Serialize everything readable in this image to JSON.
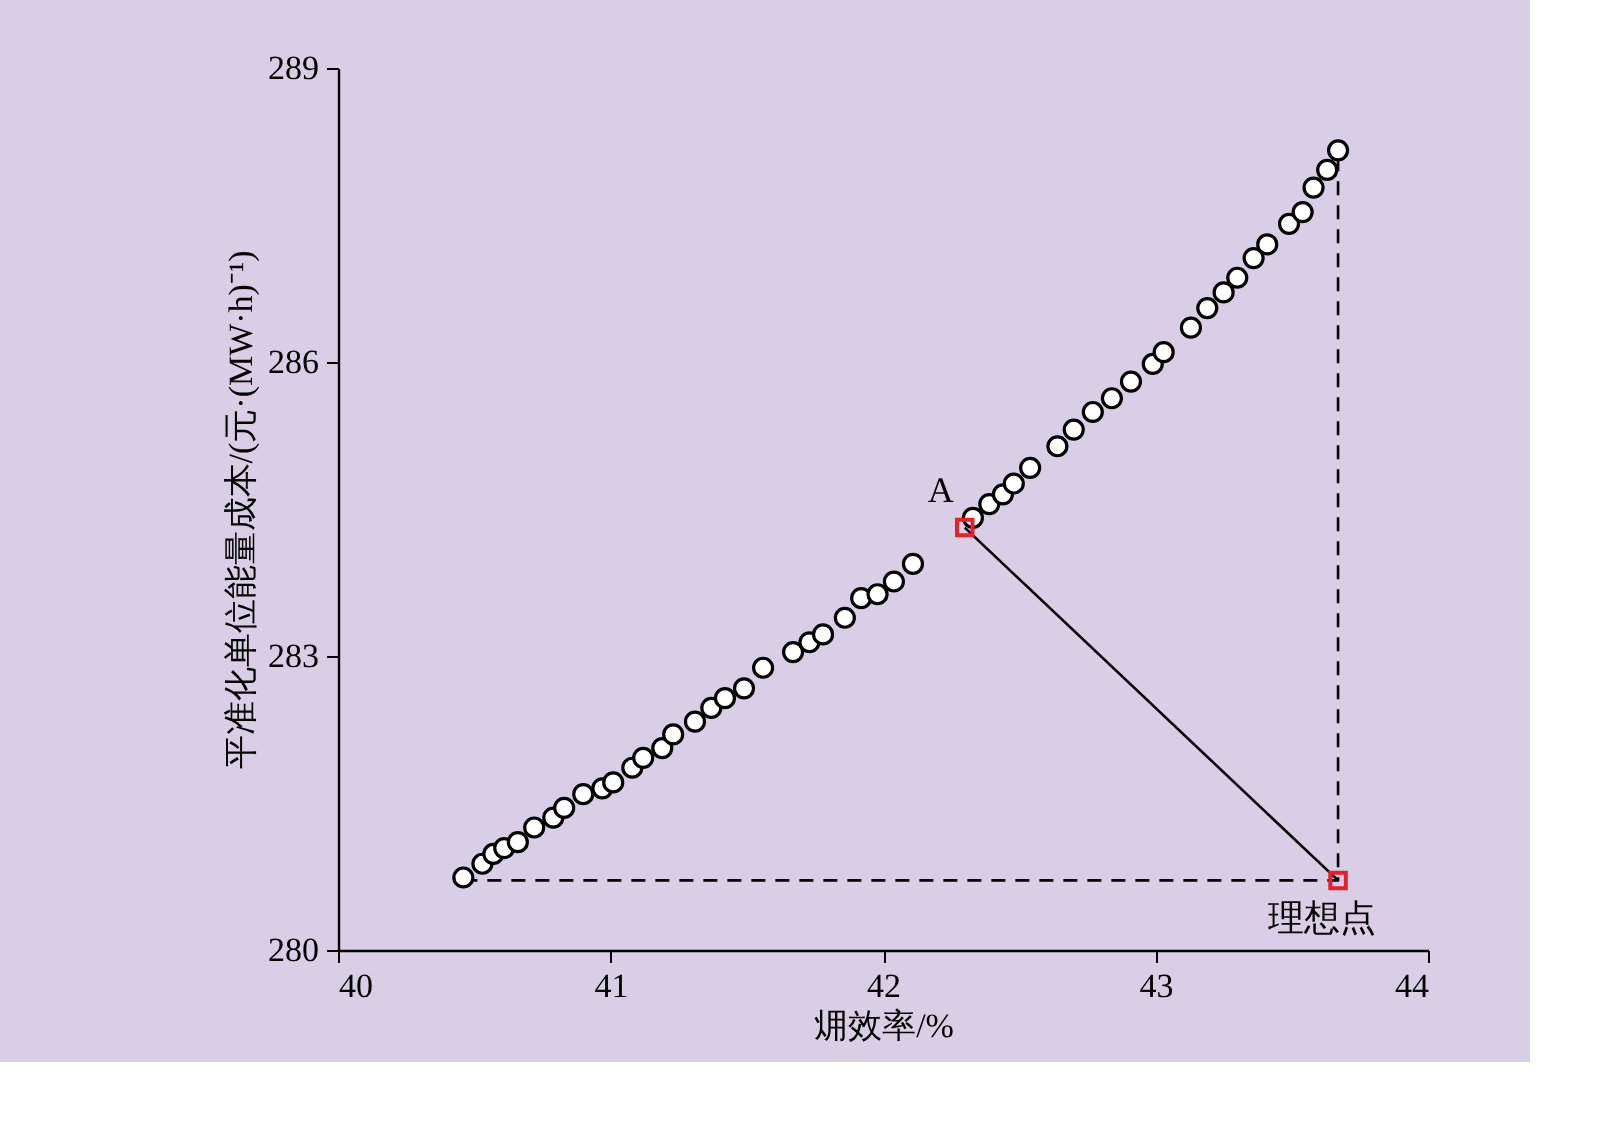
{
  "chart_data": {
    "type": "scatter",
    "xlabel": "㶲效率/%",
    "ylabel": "平准化单位能量成本/(元·(MW·h)⁻¹)",
    "xlim": [
      40,
      44
    ],
    "xticks": [
      40,
      41,
      42,
      43,
      44
    ],
    "ylim": [
      280,
      289
    ],
    "yticks": [
      280,
      283,
      286,
      289
    ],
    "grid": false,
    "series": [
      {
        "color": "#ffffff",
        "marker": "circle",
        "x": [
          40.46,
          40.53,
          40.57,
          40.61,
          40.66,
          40.72,
          40.79,
          40.83,
          40.9,
          40.97,
          41.01,
          41.08,
          41.12,
          41.19,
          41.23,
          41.31,
          41.37,
          41.42,
          41.49,
          41.56,
          41.67,
          41.73,
          41.78,
          41.86,
          41.92,
          41.98,
          42.04,
          42.11,
          42.33,
          42.39,
          42.44,
          42.48,
          42.54,
          42.64,
          42.7,
          42.77,
          42.84,
          42.91,
          42.99,
          43.03,
          43.13,
          43.19,
          43.25,
          43.3,
          43.36,
          43.41,
          43.49,
          43.54,
          43.58,
          43.63,
          43.67
        ],
        "values": [
          280.74,
          280.88,
          280.98,
          281.04,
          281.1,
          281.25,
          281.35,
          281.45,
          281.59,
          281.65,
          281.71,
          281.86,
          281.96,
          282.06,
          282.2,
          282.33,
          282.47,
          282.57,
          282.67,
          282.88,
          283.04,
          283.14,
          283.22,
          283.39,
          283.59,
          283.63,
          283.76,
          283.94,
          284.41,
          284.55,
          284.65,
          284.76,
          284.92,
          285.14,
          285.31,
          285.49,
          285.63,
          285.8,
          285.98,
          286.1,
          286.35,
          286.55,
          286.71,
          286.86,
          287.06,
          287.2,
          287.41,
          287.53,
          287.78,
          287.96,
          288.16
        ]
      },
      {
        "type": "line",
        "color": "#000000",
        "line_style": "solid",
        "marker": "none",
        "x": [
          42.3,
          43.67
        ],
        "values": [
          284.31,
          280.71
        ]
      },
      {
        "type": "line",
        "color": "#000000",
        "line_style": "dashed",
        "marker": "none",
        "x": [
          40.46,
          43.67,
          43.67
        ],
        "values": [
          280.71,
          280.71,
          288.16
        ]
      },
      {
        "type": "scatter",
        "color": "#e8202a",
        "marker": "square",
        "x": [
          42.3,
          43.67
        ],
        "values": [
          284.31,
          280.71
        ]
      }
    ],
    "annotations": [
      {
        "text": "A",
        "x": 42.3,
        "y": 284.31
      },
      {
        "text": "理想点",
        "x": 43.67,
        "y": 280.71
      }
    ]
  }
}
